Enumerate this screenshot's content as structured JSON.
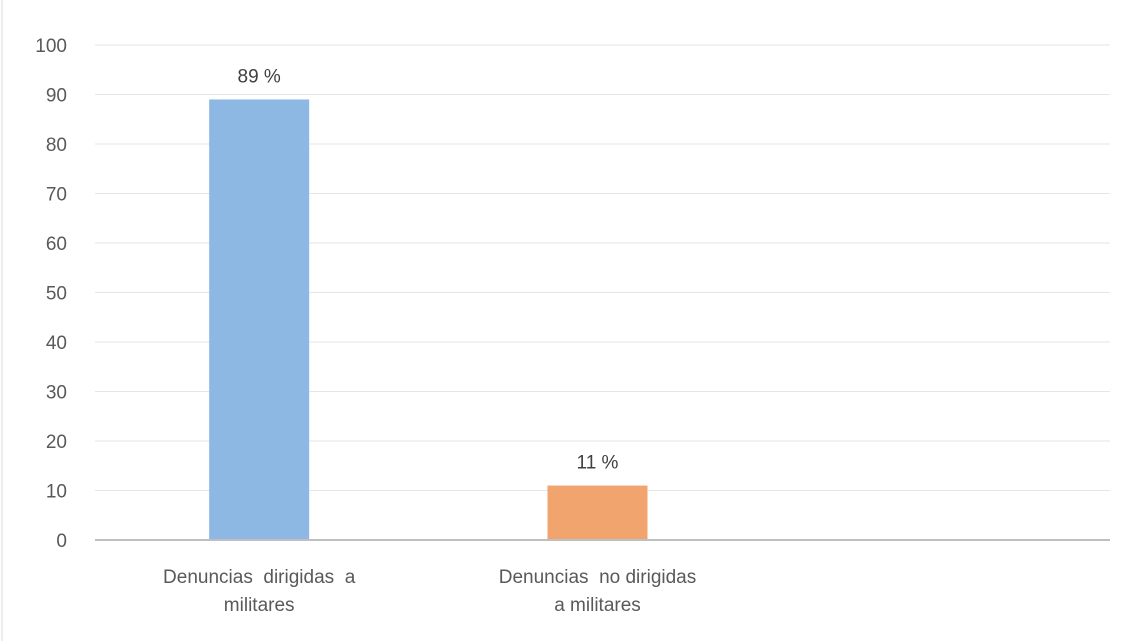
{
  "chart_data": {
    "type": "bar",
    "title": "",
    "xlabel": "",
    "ylabel": "",
    "categories": [
      [
        "Denuncias  dirigidas  a",
        "militares"
      ],
      [
        "Denuncias  no dirigidas",
        "a militares"
      ]
    ],
    "values": [
      89,
      11
    ],
    "data_labels": [
      "89 %",
      "11 %"
    ],
    "colors": [
      "#8cb8e3",
      "#f2a46f"
    ],
    "ylim": [
      0,
      100
    ],
    "yticks": [
      0,
      10,
      20,
      30,
      40,
      50,
      60,
      70,
      80,
      90,
      100
    ],
    "grid": true,
    "legend": "none"
  }
}
